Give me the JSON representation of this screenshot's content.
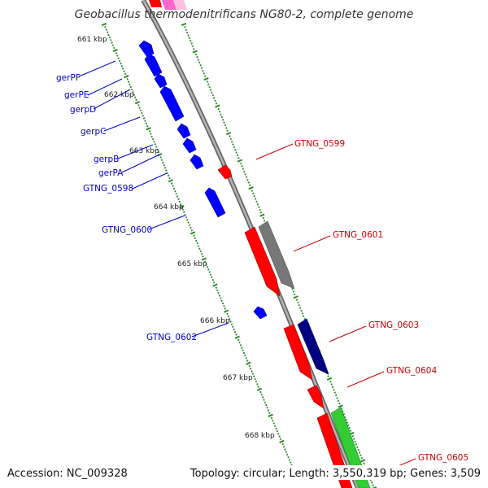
{
  "title": "Geobacillus thermodenitrificans NG80-2, complete genome",
  "footer": {
    "accession": "Accession: NC_009328",
    "topology": "Topology: circular; Length: 3,550,319 bp; Genes: 3,509"
  },
  "colors": {
    "backbone": "#8a8a8a",
    "tick": "#2a8a2a",
    "forward_label": "#cc0000",
    "reverse_label": "#0000cc",
    "reverse_gene": "#0000ff",
    "forward_gene": "#ff0000",
    "gray_gene": "#777777",
    "navy_gene": "#000080",
    "green_gene": "#33cc33",
    "pink_gene": "#ff66cc"
  },
  "kbp_labels": [
    "661 kbp",
    "662 kbp",
    "663 kbp",
    "664 kbp",
    "665 kbp",
    "666 kbp",
    "667 kbp",
    "668 kbp"
  ],
  "left_labels": [
    "gerPF",
    "gerPE",
    "gerpD",
    "gerpC",
    "gerpB",
    "gerPA",
    "GTNG_0598",
    "GTNG_0600",
    "GTNG_0602"
  ],
  "right_labels": [
    "GTNG_0599",
    "GTNG_0601",
    "GTNG_0603",
    "GTNG_0604",
    "GTNG_0605"
  ]
}
